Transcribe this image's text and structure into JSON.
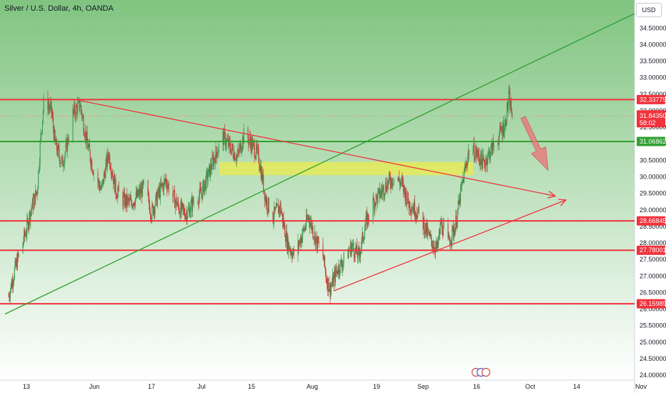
{
  "header": {
    "title": "Silver / U.S. Dollar, 4h, OANDA",
    "currency": "USD"
  },
  "colors": {
    "bg_top": "#80c480",
    "bg_bottom": "#ffffff",
    "up_candle": "#3a9a52",
    "down_candle": "#cc3a3a",
    "resistance": "#f0323c",
    "support_green": "#32a032",
    "highlight_zone": "#f2ee3c",
    "arrow_fill": "#e8787a"
  },
  "chart_data": {
    "type": "candlestick",
    "title": "Silver / U.S. Dollar, 4h, OANDA",
    "ylim": [
      23.85,
      35.35
    ],
    "y_ticks": [
      "24.00000",
      "24.50000",
      "25.00000",
      "25.50000",
      "26.00000",
      "26.50000",
      "27.00000",
      "27.50000",
      "28.00000",
      "28.50000",
      "29.00000",
      "29.50000",
      "30.00000",
      "30.50000",
      "31.00000",
      "31.50000",
      "32.00000",
      "32.50000",
      "33.00000",
      "33.50000",
      "34.00000",
      "34.50000"
    ],
    "x_labels": [
      "13",
      "Jun",
      "17",
      "Jul",
      "15",
      "Aug",
      "19",
      "Sep",
      "16",
      "Oct",
      "14",
      "Nov"
    ],
    "horizontal_levels": [
      {
        "value": 32.33779,
        "label": "32.33779",
        "color": "red"
      },
      {
        "value": 31.06862,
        "label": "31.06862",
        "color": "green"
      },
      {
        "value": 28.66845,
        "label": "28.66845",
        "color": "red"
      },
      {
        "value": 27.78001,
        "label": "27.78001",
        "color": "red"
      },
      {
        "value": 26.15989,
        "label": "26.15989",
        "color": "red"
      }
    ],
    "current_price": {
      "value": 31.8435,
      "label": "31.84350",
      "countdown": "58:02"
    },
    "price_path": [
      [
        "2024-05-08",
        26.4
      ],
      [
        "2024-05-10",
        27.3
      ],
      [
        "2024-05-13",
        28.4
      ],
      [
        "2024-05-14",
        28.9
      ],
      [
        "2024-05-16",
        29.6
      ],
      [
        "2024-05-17",
        31.2
      ],
      [
        "2024-05-18",
        32.4
      ],
      [
        "2024-05-20",
        32.0
      ],
      [
        "2024-05-21",
        31.0
      ],
      [
        "2024-05-23",
        30.4
      ],
      [
        "2024-05-24",
        30.8
      ],
      [
        "2024-05-26",
        31.9
      ],
      [
        "2024-05-28",
        32.2
      ],
      [
        "2024-05-30",
        31.0
      ],
      [
        "2024-06-01",
        30.1
      ],
      [
        "2024-06-03",
        29.6
      ],
      [
        "2024-06-04",
        30.2
      ],
      [
        "2024-06-05",
        30.7
      ],
      [
        "2024-06-07",
        29.6
      ],
      [
        "2024-06-09",
        29.3
      ],
      [
        "2024-06-11",
        29.2
      ],
      [
        "2024-06-13",
        29.4
      ],
      [
        "2024-06-15",
        29.7
      ],
      [
        "2024-06-17",
        28.9
      ],
      [
        "2024-06-19",
        29.5
      ],
      [
        "2024-06-21",
        29.9
      ],
      [
        "2024-06-23",
        29.4
      ],
      [
        "2024-06-25",
        29.0
      ],
      [
        "2024-06-27",
        28.9
      ],
      [
        "2024-06-29",
        29.3
      ],
      [
        "2024-07-01",
        29.5
      ],
      [
        "2024-07-03",
        30.1
      ],
      [
        "2024-07-05",
        30.7
      ],
      [
        "2024-07-07",
        31.2
      ],
      [
        "2024-07-09",
        30.9
      ],
      [
        "2024-07-11",
        30.6
      ],
      [
        "2024-07-13",
        31.3
      ],
      [
        "2024-07-15",
        31.0
      ],
      [
        "2024-07-17",
        30.6
      ],
      [
        "2024-07-19",
        29.3
      ],
      [
        "2024-07-21",
        28.8
      ],
      [
        "2024-07-23",
        29.1
      ],
      [
        "2024-07-25",
        28.0
      ],
      [
        "2024-07-27",
        27.6
      ],
      [
        "2024-07-29",
        28.2
      ],
      [
        "2024-07-31",
        28.8
      ],
      [
        "2024-08-02",
        28.1
      ],
      [
        "2024-08-04",
        27.6
      ],
      [
        "2024-08-05",
        26.9
      ],
      [
        "2024-08-06",
        26.6
      ],
      [
        "2024-08-08",
        27.2
      ],
      [
        "2024-08-10",
        27.5
      ],
      [
        "2024-08-12",
        27.9
      ],
      [
        "2024-08-14",
        27.6
      ],
      [
        "2024-08-16",
        28.6
      ],
      [
        "2024-08-18",
        29.2
      ],
      [
        "2024-08-20",
        29.5
      ],
      [
        "2024-08-22",
        29.8
      ],
      [
        "2024-08-24",
        30.0
      ],
      [
        "2024-08-26",
        29.8
      ],
      [
        "2024-08-28",
        29.2
      ],
      [
        "2024-08-30",
        29.0
      ],
      [
        "2024-09-01",
        28.6
      ],
      [
        "2024-09-03",
        28.1
      ],
      [
        "2024-09-05",
        27.8
      ],
      [
        "2024-09-06",
        28.6
      ],
      [
        "2024-09-08",
        28.0
      ],
      [
        "2024-09-10",
        28.5
      ],
      [
        "2024-09-12",
        29.8
      ],
      [
        "2024-09-14",
        30.9
      ],
      [
        "2024-09-16",
        30.7
      ],
      [
        "2024-09-18",
        30.4
      ],
      [
        "2024-09-20",
        30.8
      ],
      [
        "2024-09-22",
        31.2
      ],
      [
        "2024-09-24",
        31.6
      ],
      [
        "2024-09-25",
        32.4
      ],
      [
        "2024-09-26",
        31.84
      ]
    ],
    "trendlines": [
      {
        "color": "green",
        "points": [
          [
            "2024-05-07",
            25.85
          ],
          [
            "2024-11-12",
            35.6
          ]
        ]
      },
      {
        "color": "red",
        "points": [
          [
            "2024-05-27",
            32.33
          ],
          [
            "2024-10-08",
            29.42
          ]
        ],
        "arrowhead": true
      },
      {
        "color": "red",
        "points": [
          [
            "2024-08-07",
            26.55
          ],
          [
            "2024-10-11",
            29.3
          ]
        ],
        "arrowhead": true
      }
    ],
    "zones": [
      {
        "x": [
          "2024-07-06",
          "2024-09-15"
        ],
        "y": [
          30.05,
          30.45
        ],
        "color": "yellow"
      }
    ],
    "forecast_arrow": {
      "from": [
        "2024-09-29",
        31.8
      ],
      "to": [
        "2024-10-06",
        30.2
      ]
    }
  }
}
